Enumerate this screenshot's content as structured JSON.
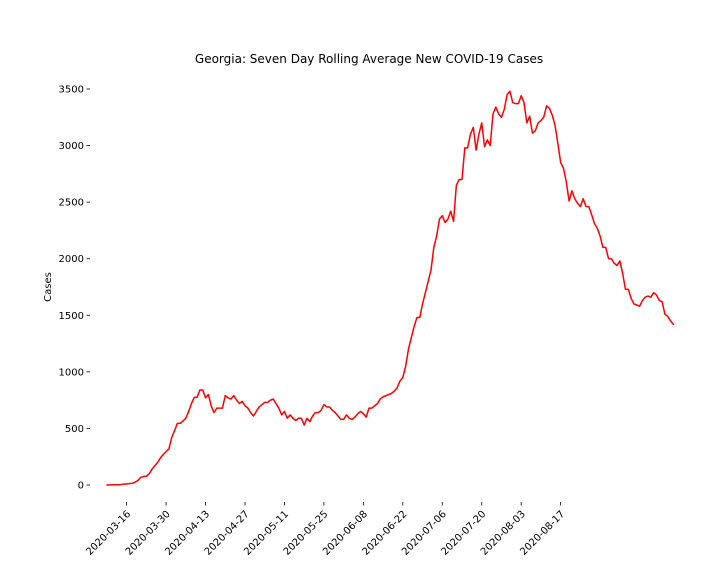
{
  "chart_data": {
    "type": "line",
    "title": "Georgia: Seven Day Rolling Average New COVID-19 Cases",
    "xlabel": "",
    "ylabel": "Cases",
    "x_start": "2020-03-09",
    "x_ticks": [
      "2020-03-16",
      "2020-03-30",
      "2020-04-13",
      "2020-04-27",
      "2020-05-11",
      "2020-05-25",
      "2020-06-08",
      "2020-06-22",
      "2020-07-06",
      "2020-07-20",
      "2020-08-03",
      "2020-08-17"
    ],
    "y_ticks": [
      0,
      500,
      1000,
      1500,
      2000,
      2500,
      3000,
      3500
    ],
    "xlim": [
      "2020-03-03",
      "2020-09-17"
    ],
    "ylim": [
      -150,
      3650
    ],
    "grid": false,
    "legend": "none",
    "series_color": "#ff0000",
    "series": [
      {
        "values": [
          0,
          1,
          2,
          2,
          3,
          4,
          8,
          10,
          13,
          15,
          25,
          40,
          68,
          75,
          78,
          100,
          140,
          170,
          200,
          240,
          270,
          295,
          320,
          420,
          480,
          545,
          545,
          565,
          590,
          650,
          720,
          775,
          775,
          840,
          840,
          770,
          800,
          700,
          640,
          680,
          680,
          680,
          790,
          770,
          760,
          790,
          750,
          720,
          740,
          700,
          680,
          640,
          610,
          650,
          690,
          710,
          730,
          730,
          750,
          760,
          720,
          680,
          620,
          650,
          590,
          620,
          590,
          570,
          590,
          590,
          530,
          590,
          560,
          610,
          640,
          640,
          660,
          710,
          690,
          690,
          660,
          640,
          610,
          580,
          580,
          620,
          590,
          580,
          600,
          630,
          650,
          630,
          600,
          680,
          680,
          700,
          720,
          760,
          780,
          790,
          800,
          810,
          830,
          860,
          920,
          950,
          1050,
          1200,
          1300,
          1400,
          1480,
          1480,
          1600,
          1700,
          1800,
          1900,
          2100,
          2200,
          2350,
          2380,
          2320,
          2350,
          2420,
          2330,
          2650,
          2700,
          2700,
          2980,
          2980,
          3100,
          3160,
          2960,
          3100,
          3200,
          2990,
          3050,
          3000,
          3280,
          3340,
          3280,
          3250,
          3320,
          3450,
          3480,
          3380,
          3370,
          3370,
          3440,
          3380,
          3200,
          3260,
          3110,
          3130,
          3200,
          3220,
          3250,
          3350,
          3330,
          3270,
          3180,
          3020,
          2850,
          2800,
          2680,
          2510,
          2600,
          2530,
          2490,
          2460,
          2530,
          2460,
          2460,
          2390,
          2310,
          2270,
          2200,
          2100,
          2100,
          2000,
          2000,
          1960,
          1940,
          1980,
          1870,
          1730,
          1730,
          1650,
          1600,
          1590,
          1580,
          1630,
          1660,
          1670,
          1660,
          1700,
          1680,
          1630,
          1620,
          1510,
          1490,
          1450,
          1420
        ]
      }
    ]
  }
}
